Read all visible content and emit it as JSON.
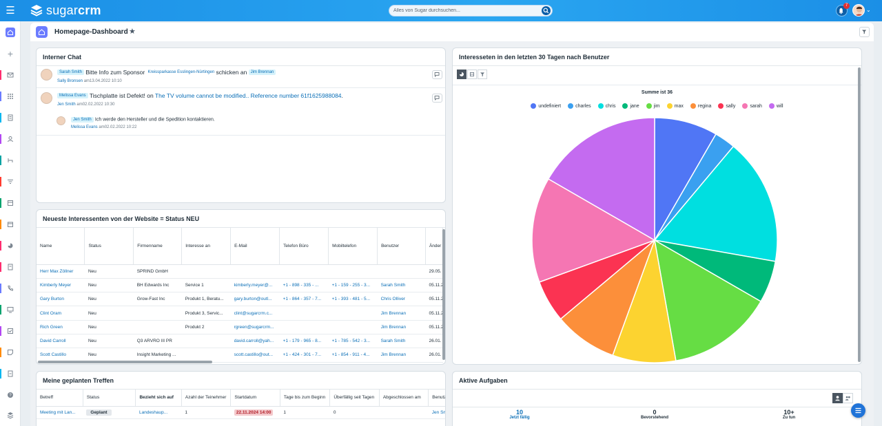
{
  "topbar": {
    "logo_text_a": "sugar",
    "logo_text_b": "crm",
    "search_placeholder": "Alles von Sugar durchsuchen...",
    "notification_count": "7"
  },
  "colors": {
    "accent": "#6b7cff",
    "topbar": "#1b8fe6",
    "link": "#0b6fb7"
  },
  "sidebar_icons": [
    "home-icon",
    "plus-icon",
    "mail-icon",
    "dashboard-icon",
    "accounts-icon",
    "contacts-icon",
    "opportunities-icon",
    "leads-icon",
    "reports-icon",
    "calendar-icon",
    "chart-icon",
    "quotes-icon",
    "calls-icon",
    "monitor-icon",
    "tasks-icon",
    "notes-icon",
    "documents-icon",
    "help-icon",
    "layers-icon"
  ],
  "header": {
    "title": "Homepage-Dashboard"
  },
  "chat": {
    "title": "Interner Chat",
    "messages": [
      {
        "author_tag": "Sarah Smith",
        "text1": "Bitte Info zum Sponsor",
        "account": "Kreissparkasse Esslingen-Nürtingen",
        "text2": "schicken an",
        "recipient": "Jim Brennan",
        "meta_user": "Sally Bronsen",
        "meta_date": "am13.04.2022 10:10"
      },
      {
        "author_tag": "Melissa Evans",
        "text1": "Tischplatte ist Defekt! on",
        "link": "The TV volume cannot be modified.. Reference number 61f1625988084",
        "link_suffix": ".",
        "meta_user": "Jen Smith",
        "meta_date": "am02.02.2022 10:30"
      }
    ],
    "reply": {
      "author_tag": "Jen Smith",
      "text": "Ich werde den Hersteller und die Spedition kontaktieren.",
      "meta_user": "Melissa Evans",
      "meta_date": "am02.02.2022 10:22"
    }
  },
  "leads": {
    "title": "Neueste Interessenten von der Website = Status NEU",
    "columns": [
      "Name",
      "Status",
      "Firmenname",
      "Interesse an",
      "E-Mail",
      "Telefon Büro",
      "Mobiltelefon",
      "Benutzer",
      "Änder"
    ],
    "rows": [
      [
        "Herr Max Zöllner",
        "Neu",
        "SPRIND GmbH",
        "",
        "",
        "",
        "",
        "",
        "29.05."
      ],
      [
        "Kimberly Meyer",
        "Neu",
        "BH Edwards Inc",
        "Service 1",
        "kimberly.meyer@...",
        "+1 - 898 - 335 - ...",
        "+1 - 159 - 255 - 3...",
        "Sarah Smith",
        "05.11.2"
      ],
      [
        "Gary Burton",
        "Neu",
        "Grow-Fast Inc",
        "Produkt 1, Beratu...",
        "gary.burton@outl...",
        "+1 - 864 - 357 - 7...",
        "+1 - 393 - 481 - 5...",
        "Chris Olliver",
        "05.11.2"
      ],
      [
        "Clint Oram",
        "Neu",
        "",
        "Produkt 3, Servic...",
        "clint@sugarcrm.c...",
        "",
        "",
        "Jim Brennan",
        "05.11.2"
      ],
      [
        "Rich Green",
        "Neu",
        "",
        "Produkt 2",
        "rgreen@sugarcrm...",
        "",
        "",
        "Jim Brennan",
        "05.11.2"
      ],
      [
        "David Carroll",
        "Neu",
        "Q3 ARVRO III PR",
        "",
        "david.carroll@yah...",
        "+1 - 179 - 965 - 8...",
        "+1 - 785 - 542 - 3...",
        "Sarah Smith",
        "26.01."
      ],
      [
        "Scott Castillo",
        "Neu",
        "Insight Marketing ...",
        "",
        "scott.castillo@out...",
        "+1 - 424 - 301 - 7...",
        "+1 - 854 - 911 - 4...",
        "Jim Brennan",
        "26.01."
      ]
    ]
  },
  "meetings": {
    "title": "Meine geplanten Treffen",
    "columns": [
      "Betreff",
      "Status",
      "Bezieht sich auf",
      "Azahl der Teinehmer",
      "Startdatum",
      "Tage bis zum Beginn",
      "Überfällig seit Tagen",
      "Abgeschlossen am",
      "Benutzer"
    ],
    "rows": [
      [
        "Meeting mit Lan...",
        "Geplant",
        "Landeshaup...",
        "1",
        "22.11.2024 14:00",
        "1",
        "0",
        "",
        "Jen Smi"
      ]
    ]
  },
  "tasks": {
    "title": "Aktive Aufgaben",
    "tabs": [
      {
        "count": "10",
        "label": "Jetzt fällig"
      },
      {
        "count": "0",
        "label": "Bevorstehend"
      },
      {
        "count": "10+",
        "label": "Zu tun"
      }
    ]
  },
  "chart_title": "Interesseten in den letzten 30 Tagen nach Benutzer",
  "chart_data": {
    "type": "pie",
    "title": "Summe ist 36",
    "categories": [
      "undefiniert",
      "charles",
      "chris",
      "jane",
      "jim",
      "max",
      "regina",
      "sally",
      "sarah",
      "will"
    ],
    "colors": [
      "#5076f5",
      "#3aa0f0",
      "#00dfe0",
      "#00b97a",
      "#66dd44",
      "#fcd330",
      "#fc8f3a",
      "#fb3352",
      "#f576b3",
      "#c46bf0"
    ],
    "values": [
      3,
      1,
      6,
      2,
      5,
      3,
      3,
      2,
      5,
      6
    ],
    "legend_position": "top"
  }
}
